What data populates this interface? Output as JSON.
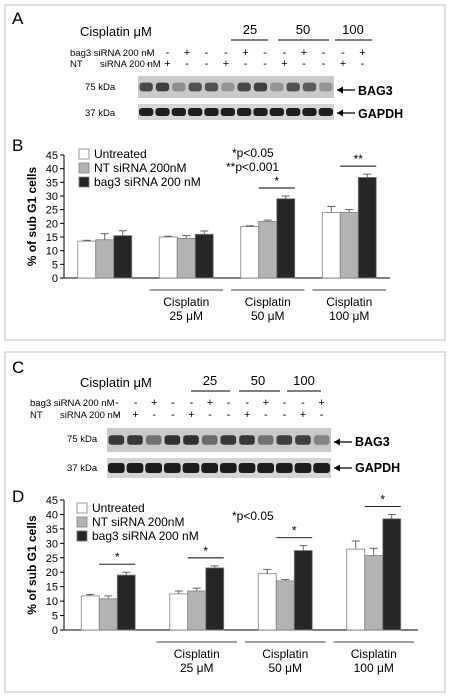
{
  "top": {
    "panel_a": "A",
    "panel_b": "B",
    "blot": {
      "cisplatin_label": "Cisplatin μM",
      "doses": [
        "25",
        "50",
        "100"
      ],
      "row1_label": "bag3 siRNA 200 nM",
      "row2_label_a": "NT",
      "row2_label_b": "siRNA 200 nM",
      "row1_signs": [
        "-",
        "-",
        "+",
        "-",
        "-",
        "+",
        "-",
        "-",
        "+",
        "-",
        "-",
        "+"
      ],
      "row2_signs": [
        "-",
        "+",
        "-",
        "-",
        "+",
        "-",
        "-",
        "+",
        "-",
        "-",
        "+",
        "-"
      ],
      "kda75": "75 kDa",
      "kda37": "37 kDa",
      "band1": "BAG3",
      "band2": "GAPDH"
    },
    "sig1": "*p<0.05",
    "sig2": "**p<0.001"
  },
  "bottom": {
    "panel_c": "C",
    "panel_d": "D",
    "blot": {
      "cisplatin_label": "Cisplatin μM",
      "doses": [
        "25",
        "50",
        "100"
      ],
      "row1_label": "bag3 siRNA 200 nM",
      "row2_label_a": "NT",
      "row2_label_b": "siRNA 200 nM",
      "row1_signs": [
        "-",
        "-",
        "+",
        "-",
        "-",
        "+",
        "-",
        "-",
        "+",
        "-",
        "-",
        "+"
      ],
      "row2_signs": [
        "-",
        "+",
        "-",
        "-",
        "+",
        "-",
        "-",
        "+",
        "-",
        "-",
        "+",
        "-"
      ],
      "kda75": "75 kDa",
      "kda37": "37 kDa",
      "band1": "BAG3",
      "band2": "GAPDH"
    },
    "sig1": "*p<0.05"
  },
  "colors": {
    "untreated": "#ffffff",
    "nt": "#b3b3b3",
    "bag3": "#262626",
    "border": "#7f7f7f"
  },
  "chart_data": [
    {
      "type": "bar",
      "panel": "B",
      "ylabel": "% of sub G1 cells",
      "ylim": [
        0,
        45
      ],
      "yticks": [
        0,
        5,
        10,
        15,
        20,
        25,
        30,
        35,
        40,
        45
      ],
      "categories": [
        "",
        "Cisplatin 25 μM",
        "Cisplatin 50 μM",
        "Cisplatin 100 μM"
      ],
      "category_lines": [
        [
          "",
          ""
        ],
        [
          "Cisplatin",
          "25 μM"
        ],
        [
          "Cisplatin",
          "50 μM"
        ],
        [
          "Cisplatin",
          "100 μM"
        ]
      ],
      "series": [
        {
          "name": "Untreated",
          "values": [
            13.5,
            15.0,
            18.8,
            24.0
          ],
          "errors": [
            0.3,
            0.3,
            0.3,
            2.2
          ]
        },
        {
          "name": "NT siRNA 200nM",
          "values": [
            14.0,
            14.5,
            20.7,
            24.0
          ],
          "errors": [
            2.2,
            1.0,
            0.5,
            1.0
          ]
        },
        {
          "name": "bag3 siRNA 200 nM",
          "values": [
            15.5,
            16.0,
            29.0,
            36.8
          ],
          "errors": [
            1.8,
            1.2,
            1.0,
            1.2
          ]
        }
      ],
      "significance": [
        {
          "group": 2,
          "label": "*"
        },
        {
          "group": 3,
          "label": "**"
        }
      ],
      "legend": "top-left"
    },
    {
      "type": "bar",
      "panel": "D",
      "ylabel": "% of sub G1 cells",
      "ylim": [
        0,
        45
      ],
      "yticks": [
        0,
        5,
        10,
        15,
        20,
        25,
        30,
        35,
        40,
        45
      ],
      "categories": [
        "",
        "Cisplatin 25 μM",
        "Cisplatin 50 μM",
        "Cisplatin 100 μM"
      ],
      "category_lines": [
        [
          "",
          ""
        ],
        [
          "Cisplatin",
          "25 μM"
        ],
        [
          "Cisplatin",
          "50 μM"
        ],
        [
          "Cisplatin",
          "100 μM"
        ]
      ],
      "series": [
        {
          "name": "Untreated",
          "values": [
            11.8,
            12.5,
            19.5,
            28.0
          ],
          "errors": [
            0.5,
            1.0,
            1.5,
            2.8
          ]
        },
        {
          "name": "NT siRNA 200nM",
          "values": [
            10.8,
            13.5,
            17.0,
            25.8
          ],
          "errors": [
            1.0,
            1.0,
            0.5,
            2.5
          ]
        },
        {
          "name": "bag3 siRNA 200 nM",
          "values": [
            19.0,
            21.5,
            27.5,
            38.5
          ],
          "errors": [
            1.0,
            0.7,
            1.7,
            1.5
          ]
        }
      ],
      "significance": [
        {
          "group": 0,
          "label": "*"
        },
        {
          "group": 1,
          "label": "*"
        },
        {
          "group": 2,
          "label": "*"
        },
        {
          "group": 3,
          "label": "*"
        }
      ],
      "legend": "top-left"
    }
  ]
}
